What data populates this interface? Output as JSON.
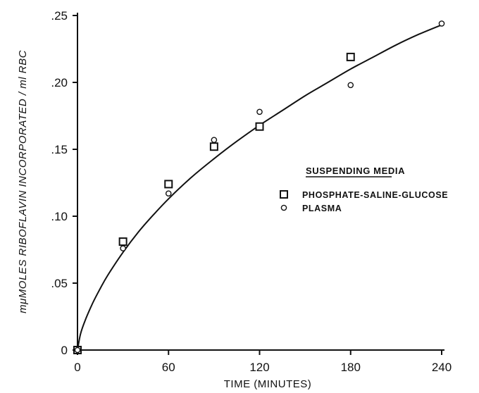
{
  "chart_data": {
    "type": "scatter",
    "title": "",
    "xlabel": "TIME (MINUTES)",
    "ylabel": "mμMOLES RIBOFLAVIN INCORPORATED / ml RBC",
    "xlim": [
      0,
      240
    ],
    "ylim": [
      0,
      0.25
    ],
    "x_ticks": [
      0,
      60,
      120,
      180,
      240
    ],
    "x_tick_labels": [
      "0",
      "60",
      "120",
      "180",
      "240"
    ],
    "y_ticks": [
      0,
      0.05,
      0.1,
      0.15,
      0.2,
      0.25
    ],
    "y_tick_labels": [
      "0",
      ".05",
      ".10",
      ".15",
      ".20",
      ".25"
    ],
    "grid": false,
    "legend": {
      "title": "SUSPENDING MEDIA",
      "position": "right-center"
    },
    "series": [
      {
        "name": "PHOSPHATE-SALINE-GLUCOSE",
        "marker": "square",
        "x": [
          0,
          30,
          60,
          90,
          120,
          180
        ],
        "y": [
          0,
          0.081,
          0.124,
          0.152,
          0.167,
          0.219
        ]
      },
      {
        "name": "PLASMA",
        "marker": "circle",
        "x": [
          0,
          30,
          60,
          90,
          120,
          180,
          240
        ],
        "y": [
          0,
          0.076,
          0.117,
          0.157,
          0.178,
          0.198,
          0.244
        ]
      }
    ],
    "fit_curve": {
      "x": [
        0,
        2,
        5,
        10,
        15,
        20,
        30,
        40,
        50,
        60,
        75,
        90,
        105,
        120,
        135,
        150,
        165,
        180,
        195,
        210,
        225,
        240
      ],
      "y": [
        0,
        0.012,
        0.022,
        0.035,
        0.046,
        0.056,
        0.073,
        0.088,
        0.101,
        0.113,
        0.129,
        0.143,
        0.156,
        0.168,
        0.179,
        0.19,
        0.2,
        0.21,
        0.219,
        0.228,
        0.236,
        0.243
      ]
    },
    "colors": {
      "ink": "#111111",
      "background": "#ffffff"
    }
  }
}
